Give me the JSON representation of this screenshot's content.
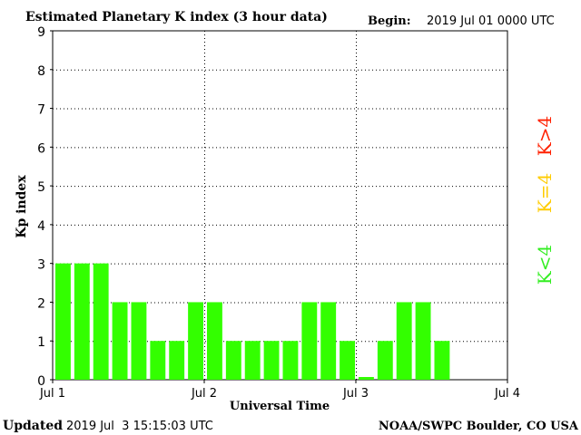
{
  "header": {
    "title": "Estimated Planetary K index (3 hour data)",
    "begin_label": "Begin:",
    "begin_value": "2019 Jul 01 0000 UTC"
  },
  "footer": {
    "updated_label": "Updated",
    "updated_value": "2019 Jul  3 15:15:03 UTC",
    "credit": "NOAA/SWPC Boulder, CO USA"
  },
  "legend": [
    {
      "label": "K>4",
      "color": "#ff2000"
    },
    {
      "label": "K=4",
      "color": "#ffcc00"
    },
    {
      "label": "K<4",
      "color": "#33ee22"
    }
  ],
  "chart_data": {
    "type": "bar",
    "title": "Estimated Planetary K index (3 hour data)",
    "xlabel": "Universal Time",
    "ylabel": "Kp index",
    "ylim": [
      0,
      9
    ],
    "yticks": [
      "0",
      "1",
      "2",
      "3",
      "4",
      "5",
      "6",
      "7",
      "8",
      "9"
    ],
    "xticks": [
      "Jul 1",
      "Jul 2",
      "Jul 3",
      "Jul 4"
    ],
    "interval_hours": 3,
    "slots_total": 24,
    "grid": true,
    "bar_color": "#33ff00",
    "values": [
      3,
      3,
      3,
      2,
      2,
      1,
      1,
      2,
      2,
      1,
      1,
      1,
      1,
      2,
      2,
      1,
      0.07,
      1,
      2,
      2,
      1
    ]
  }
}
